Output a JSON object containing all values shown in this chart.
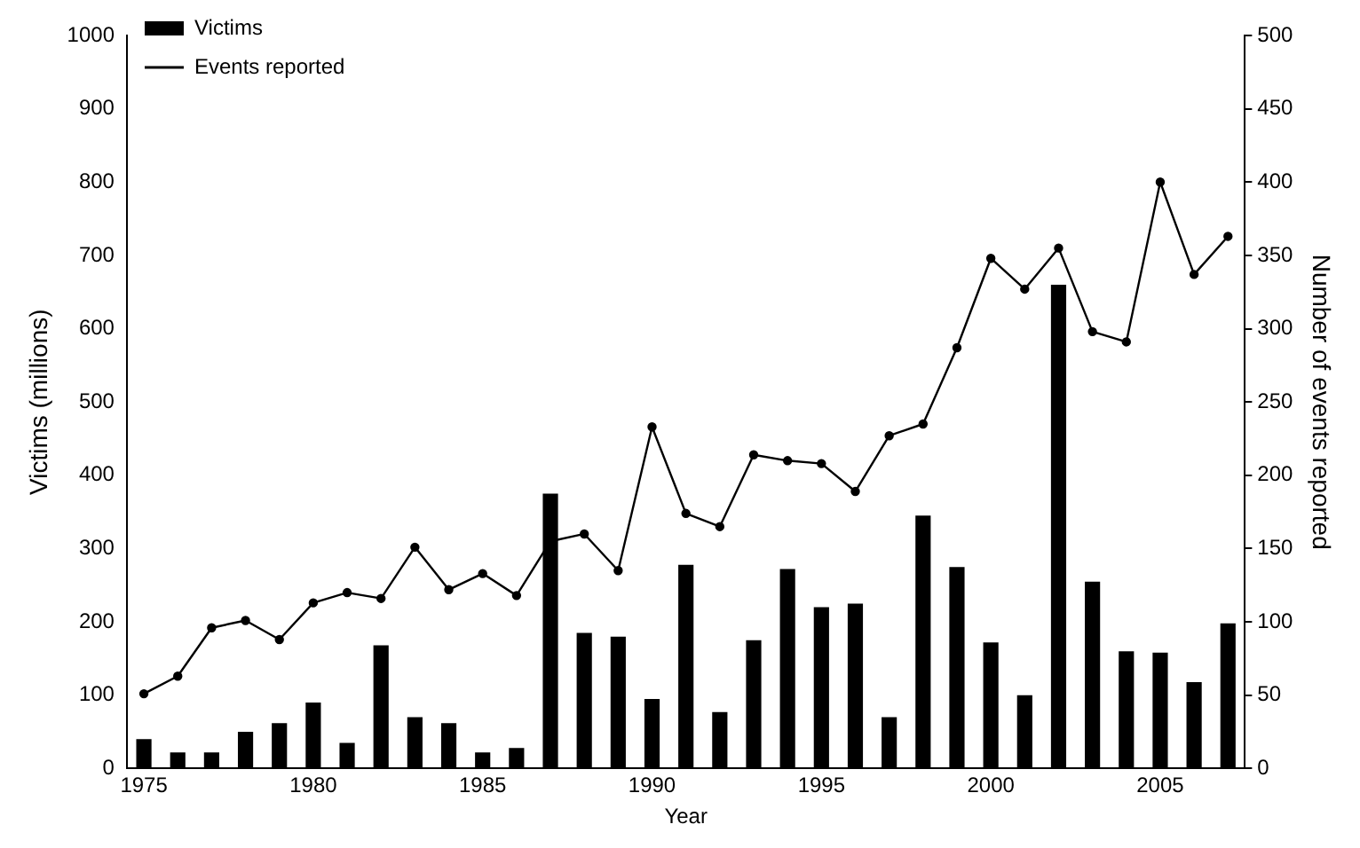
{
  "chart_data": {
    "type": "bar",
    "xlabel": "Year",
    "ylabel": "Victims (millions)",
    "y2label": "Number of events reported",
    "categories": [
      "1975",
      null,
      null,
      null,
      null,
      "1980",
      null,
      null,
      null,
      null,
      "1985",
      null,
      null,
      null,
      null,
      "1990",
      null,
      null,
      null,
      null,
      "1995",
      null,
      null,
      null,
      null,
      "2000",
      null,
      null,
      null,
      null,
      "2005",
      null,
      null
    ],
    "series": [
      {
        "name": "Victims",
        "color": "#000000",
        "values": [
          40,
          22,
          22,
          50,
          62,
          90,
          35,
          168,
          70,
          62,
          22,
          28,
          375,
          185,
          180,
          95,
          278,
          77,
          175,
          272,
          220,
          225,
          70,
          345,
          275,
          172,
          100,
          660,
          255,
          160,
          158,
          118,
          198
        ]
      },
      {
        "name": "Events reported",
        "type": "line",
        "axis": "y2",
        "color": "#000000",
        "marker": "circle",
        "values": [
          51,
          63,
          96,
          101,
          88,
          113,
          120,
          116,
          151,
          122,
          133,
          118,
          155,
          160,
          135,
          233,
          174,
          165,
          214,
          210,
          208,
          189,
          227,
          235,
          287,
          348,
          327,
          355,
          298,
          291,
          400,
          337,
          363
        ]
      }
    ],
    "ylim": [
      0,
      1000
    ],
    "yticks": [
      0,
      100,
      200,
      300,
      400,
      500,
      600,
      700,
      800,
      900,
      1000
    ],
    "y2lim": [
      0,
      500
    ],
    "y2ticks": [
      0,
      50,
      100,
      150,
      200,
      250,
      300,
      350,
      400,
      450,
      500
    ],
    "grid": false,
    "legend": "top left"
  }
}
